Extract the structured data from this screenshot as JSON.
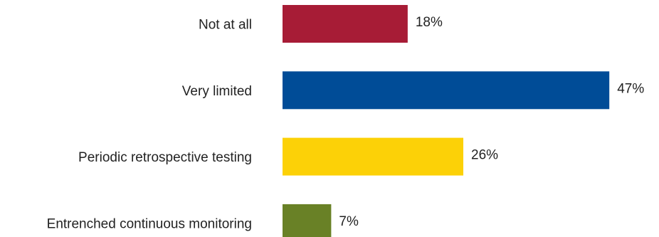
{
  "chart_data": {
    "type": "bar",
    "orientation": "horizontal",
    "categories": [
      "Not at all",
      "Very limited",
      "Periodic retrospective testing",
      "Entrenched continuous monitoring"
    ],
    "values": [
      18,
      47,
      26,
      7
    ],
    "value_labels": [
      "18%",
      "47%",
      "26%",
      "7%"
    ],
    "unit": "%",
    "colors": [
      "#a71c36",
      "#004c97",
      "#fcd107",
      "#698126"
    ],
    "grid": false,
    "legend": "none"
  }
}
